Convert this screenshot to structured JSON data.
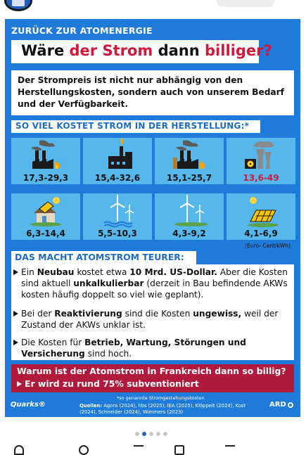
{
  "kicker": "ZURÜCK ZUR ATOMENERGIE",
  "title": {
    "part1": "Wäre ",
    "part2": "der Strom",
    "part3": " dann ",
    "part4": "billiger?",
    "part5": ""
  },
  "intro": "Der Strompreis ist nicht nur abhängig von den Herstellungs­kosten, sondern auch von unserem Bedarf und der Verfügbarkeit.",
  "section1_heading": "SO VIEL KOSTET STROM IN DER HERSTELLUNG:*",
  "costs": [
    {
      "icon": "coal-plant-icon",
      "value": "17,3-29,3"
    },
    {
      "icon": "gas-plant-icon",
      "value": "15,4-32,6"
    },
    {
      "icon": "lignite-plant-icon",
      "value": "15,1-25,7"
    },
    {
      "icon": "nuclear-plant-icon",
      "value": "13,6-49",
      "highlight": true
    },
    {
      "icon": "rooftop-solar-icon",
      "value": "6,3-14,4"
    },
    {
      "icon": "offshore-wind-icon",
      "value": "5,5-10,3"
    },
    {
      "icon": "onshore-wind-icon",
      "value": "4,3-9,2"
    },
    {
      "icon": "solar-park-icon",
      "value": "4,1-6,9"
    }
  ],
  "unit": "(Euro- Cent/kWh)",
  "section2_heading": "DAS MACHT ATOMSTROM TEURER:",
  "bullets": [
    {
      "t1": "Ein ",
      "b1": "Neubau",
      "t2": " kostet etwa ",
      "b2": "10 Mrd. US-Dollar.",
      "t3": " Aber die Kosten sind aktuell ",
      "b3": "unkalkulierbar",
      "t4": " (derzeit in Bau befindende AKWs kosten häufig doppelt so viel wie geplant)."
    },
    {
      "t1": "Bei der ",
      "b1": "Reaktivierung",
      "t2": " sind die Kosten ",
      "b2": "ungewiss,",
      "t3": " weil der Zustand der AKWs unklar ist.",
      "b3": "",
      "t4": ""
    },
    {
      "t1": "Die Kosten für ",
      "b1": "Betrieb, Wartung, Störungen und Versicherung",
      "t2": " sind hoch.",
      "b2": "",
      "t3": "",
      "b3": "",
      "t4": ""
    }
  ],
  "question": "Warum ist der Atomstrom in Frankreich dann so billig?",
  "answer": "Er wird zu rund 75% subventioniert",
  "footnote": "*so genannte Stromgestehungskosten",
  "sources_label": "Quellen:",
  "sources_text": " Agora (2024), hbs (2025), IEA (2025), Klöppelt (2024), Kost (2024), Schneider (2024), Wimmers (2023)",
  "brand_left": "Quarks®",
  "brand_right": "ARD",
  "carousel": {
    "total": 5,
    "active": 1
  },
  "colors": {
    "bg_blue": "#1f7bd9",
    "cell_blue": "#55b7ec",
    "accent_red": "#d2173a",
    "box_red": "#b21a3c",
    "heading_blue": "#1f6cc4"
  }
}
